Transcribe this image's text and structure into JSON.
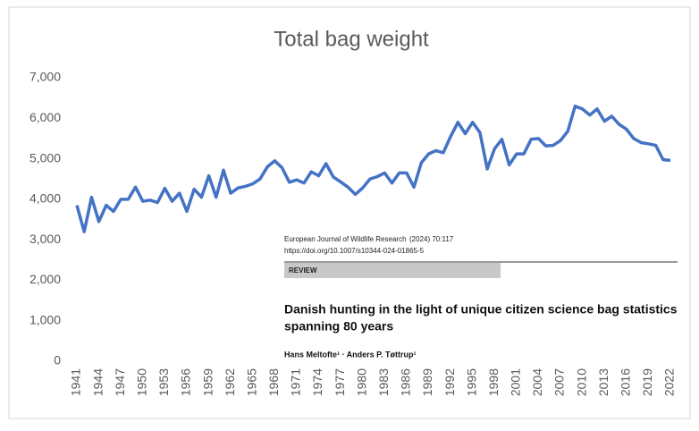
{
  "chart_data": {
    "type": "line",
    "title": "Total bag weight",
    "x": [
      1941,
      1942,
      1943,
      1944,
      1945,
      1946,
      1947,
      1948,
      1949,
      1950,
      1951,
      1952,
      1953,
      1954,
      1955,
      1956,
      1957,
      1958,
      1959,
      1960,
      1961,
      1962,
      1963,
      1964,
      1965,
      1966,
      1967,
      1968,
      1969,
      1970,
      1971,
      1972,
      1973,
      1974,
      1975,
      1976,
      1977,
      1978,
      1979,
      1980,
      1981,
      1982,
      1983,
      1984,
      1985,
      1986,
      1987,
      1988,
      1989,
      1990,
      1991,
      1992,
      1993,
      1994,
      1995,
      1996,
      1997,
      1998,
      1999,
      2000,
      2001,
      2002,
      2003,
      2004,
      2005,
      2006,
      2007,
      2008,
      2009,
      2010,
      2011,
      2012,
      2013,
      2014,
      2015,
      2016,
      2017,
      2018,
      2019,
      2020,
      2021,
      2022
    ],
    "values": [
      3850,
      3200,
      4050,
      3450,
      3850,
      3700,
      4000,
      4000,
      4300,
      3950,
      3980,
      3920,
      4270,
      3950,
      4150,
      3700,
      4250,
      4050,
      4580,
      4050,
      4720,
      4150,
      4280,
      4320,
      4380,
      4500,
      4800,
      4950,
      4780,
      4420,
      4480,
      4400,
      4680,
      4580,
      4880,
      4550,
      4430,
      4300,
      4120,
      4280,
      4500,
      4560,
      4650,
      4400,
      4650,
      4650,
      4300,
      4900,
      5120,
      5200,
      5150,
      5550,
      5900,
      5620,
      5900,
      5650,
      4750,
      5250,
      5480,
      4850,
      5120,
      5120,
      5480,
      5500,
      5320,
      5330,
      5450,
      5680,
      6300,
      6230,
      6080,
      6230,
      5930,
      6050,
      5850,
      5730,
      5500,
      5400,
      5370,
      5330,
      4980,
      4960
    ],
    "color": "#4472c4",
    "xlim": [
      1941,
      2022
    ],
    "xticks": [
      1941,
      1944,
      1947,
      1950,
      1953,
      1956,
      1959,
      1962,
      1965,
      1968,
      1971,
      1974,
      1977,
      1980,
      1983,
      1986,
      1989,
      1992,
      1995,
      1998,
      2001,
      2004,
      2007,
      2010,
      2013,
      2016,
      2019,
      2022
    ],
    "ylim": [
      0,
      7000
    ],
    "yticks": [
      0,
      {
        "value": 1000,
        "label": "1,000"
      },
      {
        "value": 2000,
        "label": "2,000"
      },
      {
        "value": 3000,
        "label": "3,000"
      },
      {
        "value": 4000,
        "label": "4,000"
      },
      {
        "value": 5000,
        "label": "5,000"
      },
      {
        "value": 6000,
        "label": "6,000"
      },
      {
        "value": 7000,
        "label": "7,000"
      }
    ],
    "grid": false
  },
  "overlay": {
    "journal": "European Journal of Wildlife Research",
    "citation": "(2024) 70:117",
    "doi": "https://doi.org/10.1007/s10344-024-01865-5",
    "section": "REVIEW",
    "title_lines": [
      "Danish hunting in the light of unique citizen science bag statistics",
      "spanning 80 years"
    ],
    "authors": "Hans Meltofte¹ · Anders P. Tøttrup¹"
  }
}
